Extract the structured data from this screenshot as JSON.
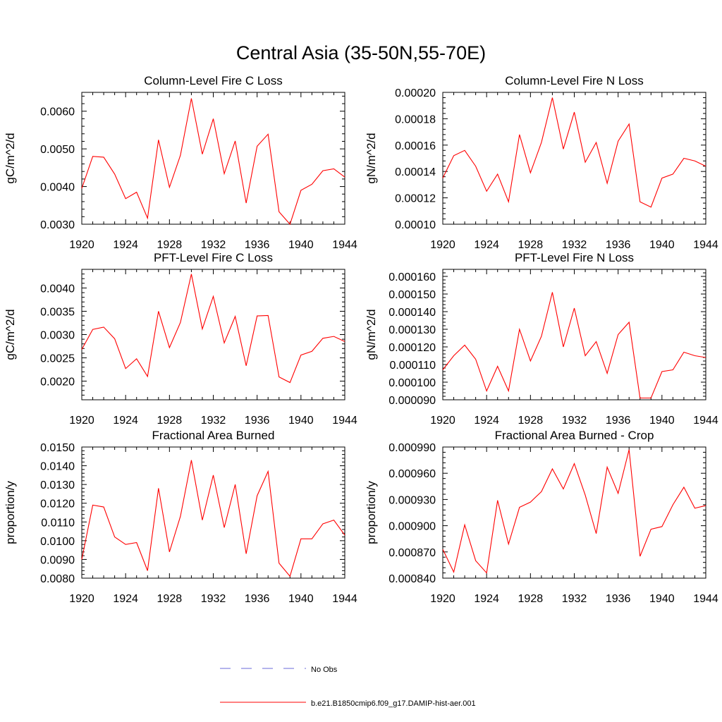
{
  "figure": {
    "title": "Central Asia (35-50N,55-70E)"
  },
  "legend": {
    "entries": [
      {
        "label": "No Obs",
        "color": "#6a6ad8",
        "style": "dashed"
      },
      {
        "label": "b.e21.B1850cmip6.f09_g17.DAMIP-hist-aer.001",
        "color": "#ff0000",
        "style": "solid"
      }
    ]
  },
  "chart_data": [
    {
      "type": "line",
      "title": "Column-Level Fire C Loss",
      "ylabel": "gC/m^2/d",
      "xlabel": "",
      "xlim": [
        1920,
        1944
      ],
      "ylim": [
        0.003,
        0.0065
      ],
      "xticks": [
        1920,
        1924,
        1928,
        1932,
        1936,
        1940,
        1944
      ],
      "yticks": [
        0.003,
        0.004,
        0.005,
        0.006
      ],
      "ytick_labels": [
        "0.0030",
        "0.0040",
        "0.0050",
        "0.0060"
      ],
      "x": [
        1920,
        1921,
        1922,
        1923,
        1924,
        1925,
        1926,
        1927,
        1928,
        1929,
        1930,
        1931,
        1932,
        1933,
        1934,
        1935,
        1936,
        1937,
        1938,
        1939,
        1940,
        1941,
        1942,
        1943,
        1944
      ],
      "series": [
        {
          "color": "#ff0000",
          "values": [
            0.00395,
            0.0048,
            0.00478,
            0.00433,
            0.00368,
            0.00385,
            0.00316,
            0.00524,
            0.00398,
            0.00483,
            0.00634,
            0.00486,
            0.0058,
            0.00434,
            0.00521,
            0.00356,
            0.00507,
            0.00539,
            0.00333,
            0.003,
            0.0039,
            0.00406,
            0.00442,
            0.00447,
            0.00425
          ]
        }
      ]
    },
    {
      "type": "line",
      "title": "Column-Level Fire N Loss",
      "ylabel": "gN/m^2/d",
      "xlabel": "",
      "xlim": [
        1920,
        1944
      ],
      "ylim": [
        0.0001,
        0.0002
      ],
      "xticks": [
        1920,
        1924,
        1928,
        1932,
        1936,
        1940,
        1944
      ],
      "yticks": [
        0.0001,
        0.00012,
        0.00014,
        0.00016,
        0.00018,
        0.0002
      ],
      "ytick_labels": [
        "0.00010",
        "0.00012",
        "0.00014",
        "0.00016",
        "0.00018",
        "0.00020"
      ],
      "x": [
        1920,
        1921,
        1922,
        1923,
        1924,
        1925,
        1926,
        1927,
        1928,
        1929,
        1930,
        1931,
        1932,
        1933,
        1934,
        1935,
        1936,
        1937,
        1938,
        1939,
        1940,
        1941,
        1942,
        1943,
        1944
      ],
      "series": [
        {
          "color": "#ff0000",
          "values": [
            0.000135,
            0.000152,
            0.000156,
            0.000144,
            0.000125,
            0.000138,
            0.000117,
            0.000168,
            0.000139,
            0.000162,
            0.000196,
            0.000157,
            0.000185,
            0.000147,
            0.000162,
            0.000131,
            0.000163,
            0.000176,
            0.000117,
            0.000113,
            0.000135,
            0.000138,
            0.00015,
            0.000148,
            0.000144
          ]
        }
      ]
    },
    {
      "type": "line",
      "title": "PFT-Level Fire C Loss",
      "ylabel": "gC/m^2/d",
      "xlabel": "",
      "xlim": [
        1920,
        1944
      ],
      "ylim": [
        0.0016,
        0.0044
      ],
      "xticks": [
        1920,
        1924,
        1928,
        1932,
        1936,
        1940,
        1944
      ],
      "yticks": [
        0.002,
        0.0025,
        0.003,
        0.0035,
        0.004
      ],
      "ytick_labels": [
        "0.0020",
        "0.0025",
        "0.0030",
        "0.0035",
        "0.0040"
      ],
      "x": [
        1920,
        1921,
        1922,
        1923,
        1924,
        1925,
        1926,
        1927,
        1928,
        1929,
        1930,
        1931,
        1932,
        1933,
        1934,
        1935,
        1936,
        1937,
        1938,
        1939,
        1940,
        1941,
        1942,
        1943,
        1944
      ],
      "series": [
        {
          "color": "#ff0000",
          "values": [
            0.00268,
            0.00311,
            0.00316,
            0.00291,
            0.00227,
            0.00248,
            0.0021,
            0.0035,
            0.00272,
            0.00326,
            0.0043,
            0.00312,
            0.00382,
            0.00282,
            0.00339,
            0.00233,
            0.0034,
            0.00341,
            0.00209,
            0.00197,
            0.00256,
            0.00264,
            0.00292,
            0.00296,
            0.00285
          ]
        }
      ]
    },
    {
      "type": "line",
      "title": "PFT-Level Fire N Loss",
      "ylabel": "gN/m^2/d",
      "xlabel": "",
      "xlim": [
        1920,
        1944
      ],
      "ylim": [
        9e-05,
        0.000164
      ],
      "xticks": [
        1920,
        1924,
        1928,
        1932,
        1936,
        1940,
        1944
      ],
      "yticks": [
        9e-05,
        0.0001,
        0.00011,
        0.00012,
        0.00013,
        0.00014,
        0.00015,
        0.00016
      ],
      "ytick_labels": [
        "0.000090",
        "0.000100",
        "0.000110",
        "0.000120",
        "0.000130",
        "0.000140",
        "0.000150",
        "0.000160"
      ],
      "x": [
        1920,
        1921,
        1922,
        1923,
        1924,
        1925,
        1926,
        1927,
        1928,
        1929,
        1930,
        1931,
        1932,
        1933,
        1934,
        1935,
        1936,
        1937,
        1938,
        1939,
        1940,
        1941,
        1942,
        1943,
        1944
      ],
      "series": [
        {
          "color": "#ff0000",
          "values": [
            0.000107,
            0.000115,
            0.000121,
            0.000113,
            9.5e-05,
            0.000109,
            9.5e-05,
            0.00013,
            0.000112,
            0.000126,
            0.000151,
            0.00012,
            0.000142,
            0.000115,
            0.000123,
            0.000105,
            0.000127,
            0.000134,
            9.1e-05,
            9.1e-05,
            0.000106,
            0.000107,
            0.000117,
            0.000115,
            0.000114
          ]
        }
      ]
    },
    {
      "type": "line",
      "title": "Fractional Area Burned",
      "ylabel": "proportion/y",
      "xlabel": "",
      "xlim": [
        1920,
        1944
      ],
      "ylim": [
        0.008,
        0.015
      ],
      "xticks": [
        1920,
        1924,
        1928,
        1932,
        1936,
        1940,
        1944
      ],
      "yticks": [
        0.008,
        0.009,
        0.01,
        0.011,
        0.012,
        0.013,
        0.014,
        0.015
      ],
      "ytick_labels": [
        "0.0080",
        "0.0090",
        "0.0100",
        "0.0110",
        "0.0120",
        "0.0130",
        "0.0140",
        "0.0150"
      ],
      "x": [
        1920,
        1921,
        1922,
        1923,
        1924,
        1925,
        1926,
        1927,
        1928,
        1929,
        1930,
        1931,
        1932,
        1933,
        1934,
        1935,
        1936,
        1937,
        1938,
        1939,
        1940,
        1941,
        1942,
        1943,
        1944
      ],
      "series": [
        {
          "color": "#ff0000",
          "values": [
            0.009,
            0.0119,
            0.0118,
            0.0102,
            0.0098,
            0.0099,
            0.0084,
            0.0128,
            0.0094,
            0.0113,
            0.0143,
            0.0111,
            0.0135,
            0.0107,
            0.013,
            0.0093,
            0.0124,
            0.0137,
            0.0088,
            0.0081,
            0.0101,
            0.0101,
            0.0109,
            0.0111,
            0.0103
          ]
        }
      ]
    },
    {
      "type": "line",
      "title": "Fractional Area Burned - Crop",
      "ylabel": "proportion/y",
      "xlabel": "",
      "xlim": [
        1920,
        1944
      ],
      "ylim": [
        0.00084,
        0.00099
      ],
      "xticks": [
        1920,
        1924,
        1928,
        1932,
        1936,
        1940,
        1944
      ],
      "yticks": [
        0.00084,
        0.00087,
        0.0009,
        0.00093,
        0.00096,
        0.00099
      ],
      "ytick_labels": [
        "0.000840",
        "0.000870",
        "0.000900",
        "0.000930",
        "0.000960",
        "0.000990"
      ],
      "x": [
        1920,
        1921,
        1922,
        1923,
        1924,
        1925,
        1926,
        1927,
        1928,
        1929,
        1930,
        1931,
        1932,
        1933,
        1934,
        1935,
        1936,
        1937,
        1938,
        1939,
        1940,
        1941,
        1942,
        1943,
        1944
      ],
      "series": [
        {
          "color": "#ff0000",
          "values": [
            0.000873,
            0.000847,
            0.000901,
            0.00086,
            0.000846,
            0.000929,
            0.000879,
            0.000921,
            0.000927,
            0.000939,
            0.000965,
            0.000942,
            0.000971,
            0.000935,
            0.000891,
            0.000967,
            0.000937,
            0.000987,
            0.000865,
            0.000896,
            0.000899,
            0.000924,
            0.000944,
            0.00092,
            0.000923
          ]
        }
      ]
    }
  ]
}
